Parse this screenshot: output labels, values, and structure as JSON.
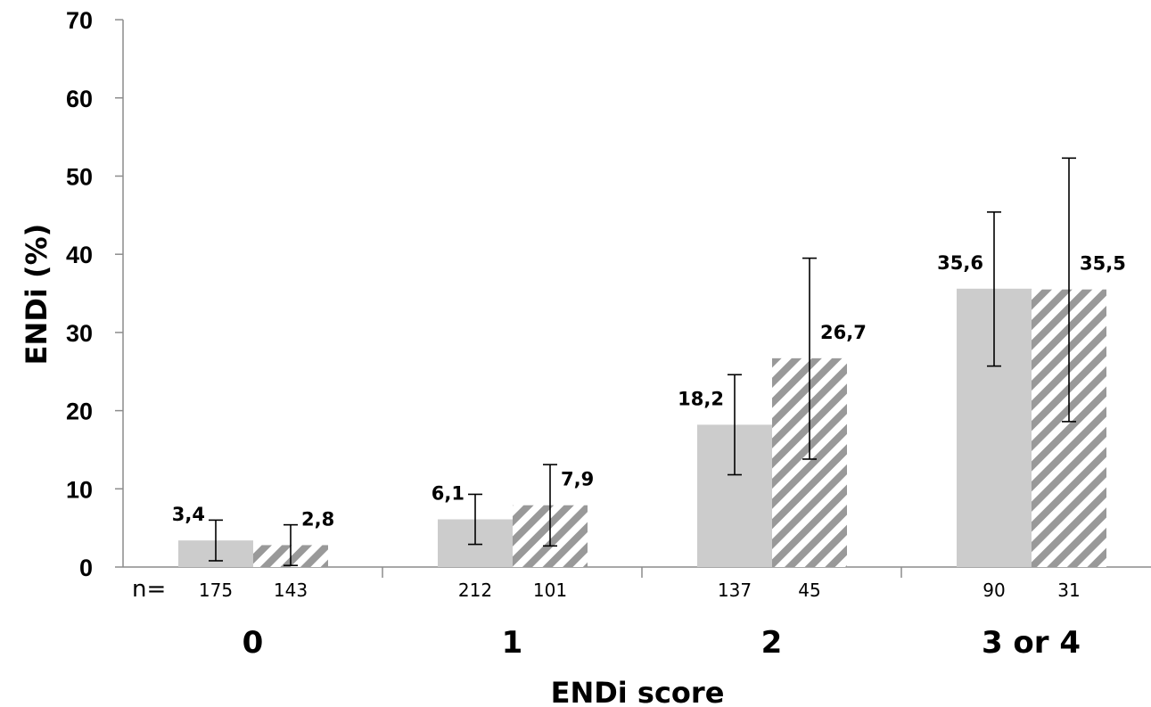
{
  "chart_data": {
    "type": "bar",
    "title": "",
    "xlabel": "ENDi score",
    "ylabel": "ENDi (%)",
    "ylim": [
      0,
      70
    ],
    "yticks": [
      0,
      10,
      20,
      30,
      40,
      50,
      60,
      70
    ],
    "categories": [
      "0",
      "1",
      "2",
      "3 or 4"
    ],
    "n_prefix": "n=",
    "grid": false,
    "legend": "none",
    "series": [
      {
        "style": "solid",
        "color": "#cccccc",
        "values": [
          3.4,
          6.1,
          18.2,
          35.6
        ],
        "labels": [
          "3,4",
          "6,1",
          "18,2",
          "35,6"
        ],
        "error_low": [
          0.8,
          2.9,
          11.8,
          25.7
        ],
        "error_high": [
          6.0,
          9.3,
          24.6,
          45.4
        ],
        "n": [
          "175",
          "212",
          "137",
          "90"
        ]
      },
      {
        "style": "hatched",
        "color": "#999999",
        "values": [
          2.8,
          7.9,
          26.7,
          35.5
        ],
        "labels": [
          "2,8",
          "7,9",
          "26,7",
          "35,5"
        ],
        "error_low": [
          0.2,
          2.7,
          13.8,
          18.6
        ],
        "error_high": [
          5.4,
          13.1,
          39.5,
          52.3
        ],
        "n": [
          "143",
          "101",
          "45",
          "31"
        ]
      }
    ]
  }
}
